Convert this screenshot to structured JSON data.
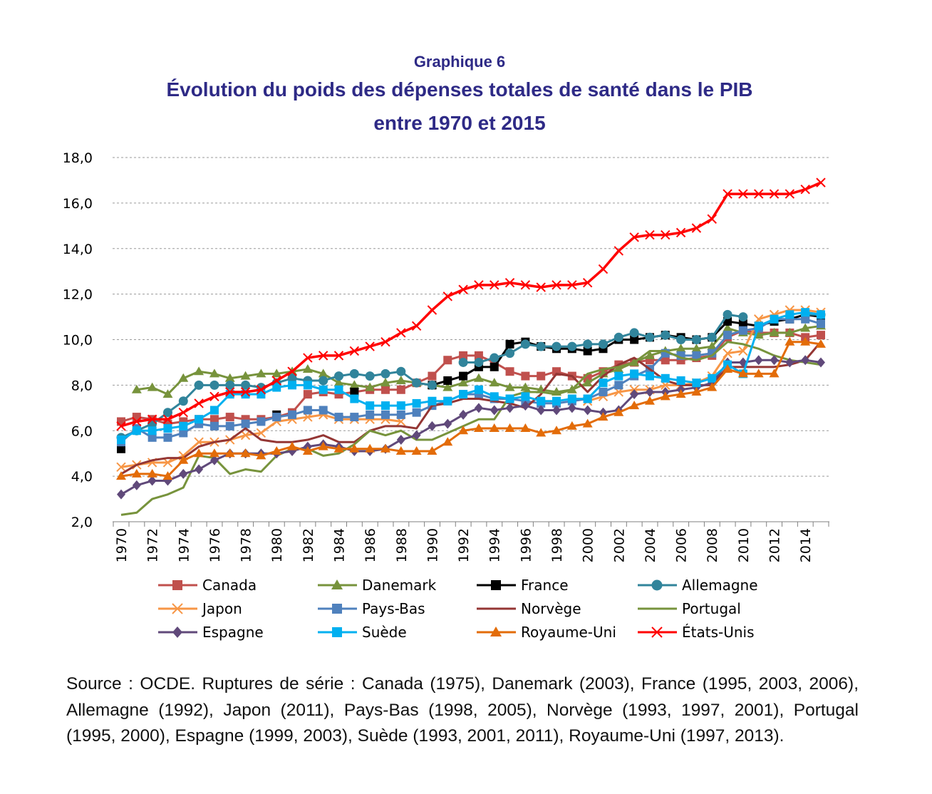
{
  "header": {
    "graph_label": "Graphique 6",
    "title_line1": "Évolution du poids des dépenses totales de santé dans le PIB",
    "title_line2": "entre 1970 et 2015"
  },
  "source_note": "Source : OCDE. Ruptures de série : Canada (1975), Danemark (2003), France (1995, 2003, 2006), Allemagne (1992), Japon (2011), Pays-Bas (1998, 2005), Norvège (1993, 1997, 2001), Portugal (1995, 2000), Espagne (1999, 2003), Suède (1993, 2001, 2011), Royaume-Uni (1997, 2013).",
  "chart_data": {
    "type": "line",
    "title": "Évolution du poids des dépenses totales de santé dans le PIB entre 1970 et 2015",
    "xlabel": "",
    "ylabel": "",
    "ylim": [
      2,
      18
    ],
    "y_ticks": [
      "2,0",
      "4,0",
      "6,0",
      "8,0",
      "10,0",
      "12,0",
      "14,0",
      "16,0",
      "18,0"
    ],
    "x": [
      1970,
      1971,
      1972,
      1973,
      1974,
      1975,
      1976,
      1977,
      1978,
      1979,
      1980,
      1981,
      1982,
      1983,
      1984,
      1985,
      1986,
      1987,
      1988,
      1989,
      1990,
      1991,
      1992,
      1993,
      1994,
      1995,
      1996,
      1997,
      1998,
      1999,
      2000,
      2001,
      2002,
      2003,
      2004,
      2005,
      2006,
      2007,
      2008,
      2009,
      2010,
      2011,
      2012,
      2013,
      2014,
      2015
    ],
    "x_tick_labels": [
      "1970",
      "1972",
      "1974",
      "1976",
      "1978",
      "1980",
      "1982",
      "1984",
      "1986",
      "1988",
      "1990",
      "1992",
      "1994",
      "1996",
      "1998",
      "2000",
      "2002",
      "2004",
      "2006",
      "2008",
      "2010",
      "2012",
      "2014"
    ],
    "grid": "horizontal dashed",
    "legend_position": "bottom",
    "series": [
      {
        "name": "Canada",
        "color": "#c0504d",
        "marker": "square",
        "line": true,
        "values": [
          6.4,
          6.6,
          6.5,
          6.3,
          6.4,
          6.5,
          6.5,
          6.6,
          6.5,
          6.5,
          6.6,
          6.8,
          7.6,
          7.7,
          7.6,
          7.7,
          7.8,
          7.8,
          7.8,
          8.1,
          8.4,
          9.1,
          9.3,
          9.3,
          9.0,
          8.6,
          8.4,
          8.4,
          8.6,
          8.4,
          8.3,
          8.6,
          8.9,
          9.0,
          9.1,
          9.1,
          9.1,
          9.2,
          9.3,
          10.1,
          10.4,
          10.3,
          10.3,
          10.3,
          10.1,
          10.2
        ]
      },
      {
        "name": "Danemark",
        "color": "#77933c",
        "marker": "triangle",
        "line": true,
        "values": [
          null,
          7.8,
          7.9,
          7.6,
          8.3,
          8.6,
          8.5,
          8.3,
          8.4,
          8.5,
          8.5,
          8.6,
          8.7,
          8.5,
          8.1,
          8.0,
          7.9,
          8.1,
          8.2,
          8.1,
          8.0,
          7.9,
          8.1,
          8.3,
          8.1,
          7.9,
          7.9,
          7.8,
          7.7,
          7.8,
          8.1,
          8.5,
          8.7,
          9.0,
          9.3,
          9.5,
          9.6,
          9.6,
          9.7,
          10.5,
          10.3,
          10.2,
          10.3,
          10.3,
          10.5,
          10.6
        ]
      },
      {
        "name": "France",
        "color": "#000000",
        "marker": "square",
        "line": true,
        "values": [
          5.2,
          null,
          null,
          null,
          null,
          null,
          null,
          null,
          null,
          null,
          6.7,
          null,
          null,
          null,
          null,
          7.7,
          null,
          null,
          null,
          null,
          8.0,
          8.2,
          8.4,
          8.8,
          8.8,
          9.8,
          9.9,
          9.7,
          9.6,
          9.6,
          9.5,
          9.6,
          10.0,
          10.0,
          10.1,
          10.2,
          10.1,
          10.0,
          10.1,
          10.8,
          10.7,
          10.6,
          10.8,
          10.9,
          11.1,
          11.0
        ]
      },
      {
        "name": "Allemagne",
        "color": "#31849b",
        "marker": "circle",
        "line": true,
        "values": [
          5.7,
          6.0,
          6.3,
          6.8,
          7.3,
          8.0,
          8.0,
          8.0,
          8.0,
          7.9,
          8.1,
          8.3,
          8.2,
          8.2,
          8.4,
          8.5,
          8.4,
          8.5,
          8.6,
          8.1,
          8.0,
          null,
          9.0,
          9.0,
          9.2,
          9.4,
          9.8,
          9.7,
          9.7,
          9.7,
          9.8,
          9.8,
          10.1,
          10.3,
          10.1,
          10.2,
          10.0,
          10.0,
          10.1,
          11.1,
          11.0,
          null,
          null,
          null,
          11.1,
          11.1
        ]
      },
      {
        "name": "Japon",
        "color": "#f79646",
        "marker": "x",
        "line": true,
        "values": [
          4.4,
          4.5,
          4.6,
          4.6,
          4.9,
          5.5,
          5.5,
          5.6,
          5.8,
          5.9,
          6.4,
          6.5,
          6.6,
          6.7,
          6.5,
          6.5,
          6.5,
          6.5,
          6.4,
          null,
          null,
          null,
          null,
          null,
          null,
          null,
          null,
          null,
          null,
          null,
          7.3,
          7.5,
          7.7,
          7.8,
          7.8,
          8.0,
          8.0,
          8.1,
          8.4,
          9.4,
          9.5,
          10.9,
          11.1,
          11.3,
          11.3,
          11.2
        ]
      },
      {
        "name": "Pays-Bas",
        "color": "#4f81bd",
        "marker": "square",
        "line": true,
        "values": [
          5.5,
          6.1,
          5.7,
          5.7,
          5.9,
          6.3,
          6.2,
          6.2,
          6.3,
          6.4,
          6.6,
          6.7,
          6.9,
          6.9,
          6.6,
          6.6,
          6.7,
          6.7,
          6.7,
          6.8,
          7.1,
          7.3,
          7.6,
          7.6,
          7.4,
          7.4,
          7.3,
          7.2,
          7.2,
          7.3,
          7.4,
          7.7,
          8.0,
          8.4,
          8.7,
          9.4,
          9.3,
          9.3,
          9.4,
          10.2,
          10.4,
          10.5,
          10.9,
          10.9,
          10.9,
          10.7
        ]
      },
      {
        "name": "Norvège",
        "color": "#943634",
        "marker": "none",
        "line": true,
        "values": [
          4.1,
          4.5,
          4.7,
          4.8,
          4.8,
          5.3,
          5.5,
          5.6,
          6.1,
          5.6,
          5.5,
          5.5,
          5.6,
          5.8,
          5.5,
          5.5,
          6.0,
          6.2,
          6.2,
          6.1,
          7.1,
          7.2,
          7.4,
          7.4,
          7.3,
          7.2,
          7.0,
          7.6,
          8.5,
          8.4,
          7.7,
          8.4,
          8.9,
          9.2,
          8.7,
          8.2,
          8.0,
          8.0,
          8.0,
          8.8,
          8.8,
          8.8,
          8.8,
          8.9,
          9.1,
          9.9
        ]
      },
      {
        "name": "Portugal",
        "color": "#77933c",
        "marker": "none",
        "line": true,
        "values": [
          2.3,
          2.4,
          3.0,
          3.2,
          3.5,
          4.9,
          4.8,
          4.1,
          4.3,
          4.2,
          4.9,
          5.2,
          5.2,
          4.9,
          5.0,
          5.4,
          6.0,
          5.8,
          6.0,
          5.6,
          5.6,
          5.9,
          6.2,
          6.5,
          6.5,
          7.5,
          7.7,
          7.7,
          7.6,
          7.8,
          8.5,
          8.7,
          8.8,
          9.0,
          9.5,
          9.5,
          9.2,
          9.1,
          9.3,
          9.9,
          9.8,
          9.6,
          9.3,
          9.1,
          9.0,
          8.9
        ]
      },
      {
        "name": "Espagne",
        "color": "#60497a",
        "marker": "diamond",
        "line": true,
        "values": [
          3.2,
          3.6,
          3.8,
          3.8,
          4.1,
          4.3,
          4.7,
          5.0,
          5.0,
          5.0,
          5.0,
          5.1,
          5.3,
          5.4,
          5.3,
          5.1,
          5.1,
          5.2,
          5.6,
          5.8,
          6.2,
          6.3,
          6.7,
          7.0,
          6.9,
          7.0,
          7.1,
          6.9,
          6.9,
          7.0,
          6.9,
          6.8,
          6.9,
          7.6,
          7.7,
          7.7,
          7.8,
          7.9,
          8.1,
          9.0,
          9.0,
          9.1,
          9.1,
          9.0,
          9.1,
          9.0
        ]
      },
      {
        "name": "Suède",
        "color": "#00b0f0",
        "marker": "square",
        "line": true,
        "values": [
          5.6,
          6.0,
          6.0,
          6.1,
          6.2,
          6.5,
          6.9,
          7.6,
          7.6,
          7.6,
          7.9,
          8.0,
          8.0,
          7.8,
          7.8,
          7.4,
          7.1,
          7.1,
          7.1,
          7.2,
          7.3,
          7.3,
          7.6,
          7.8,
          7.5,
          7.4,
          7.5,
          7.3,
          7.3,
          7.4,
          7.4,
          8.1,
          8.4,
          8.5,
          8.4,
          8.3,
          8.2,
          8.1,
          8.3,
          8.9,
          8.5,
          10.6,
          10.9,
          11.1,
          11.2,
          11.1
        ]
      },
      {
        "name": "Royaume-Uni",
        "color": "#e36c09",
        "marker": "triangle",
        "line": true,
        "values": [
          4.0,
          4.1,
          4.1,
          4.0,
          4.7,
          5.0,
          5.0,
          5.0,
          5.0,
          4.9,
          5.1,
          5.3,
          5.1,
          5.3,
          5.2,
          5.2,
          5.2,
          5.2,
          5.1,
          5.1,
          5.1,
          5.5,
          6.0,
          6.1,
          6.1,
          6.1,
          6.1,
          5.9,
          6.0,
          6.2,
          6.3,
          6.6,
          6.8,
          7.1,
          7.3,
          7.5,
          7.6,
          7.7,
          7.9,
          8.7,
          8.5,
          8.5,
          8.5,
          9.9,
          9.9,
          9.8
        ]
      },
      {
        "name": "États-Unis",
        "color": "#ff0000",
        "marker": "x",
        "line": true,
        "values": [
          6.2,
          6.4,
          6.5,
          6.5,
          6.8,
          7.2,
          7.5,
          7.7,
          7.7,
          7.8,
          8.2,
          8.6,
          9.2,
          9.3,
          9.3,
          9.5,
          9.7,
          9.9,
          10.3,
          10.6,
          11.3,
          11.9,
          12.2,
          12.4,
          12.4,
          12.5,
          12.4,
          12.3,
          12.4,
          12.4,
          12.5,
          13.1,
          13.9,
          14.5,
          14.6,
          14.6,
          14.7,
          14.9,
          15.3,
          16.4,
          16.4,
          16.4,
          16.4,
          16.4,
          16.6,
          16.9
        ]
      }
    ]
  }
}
